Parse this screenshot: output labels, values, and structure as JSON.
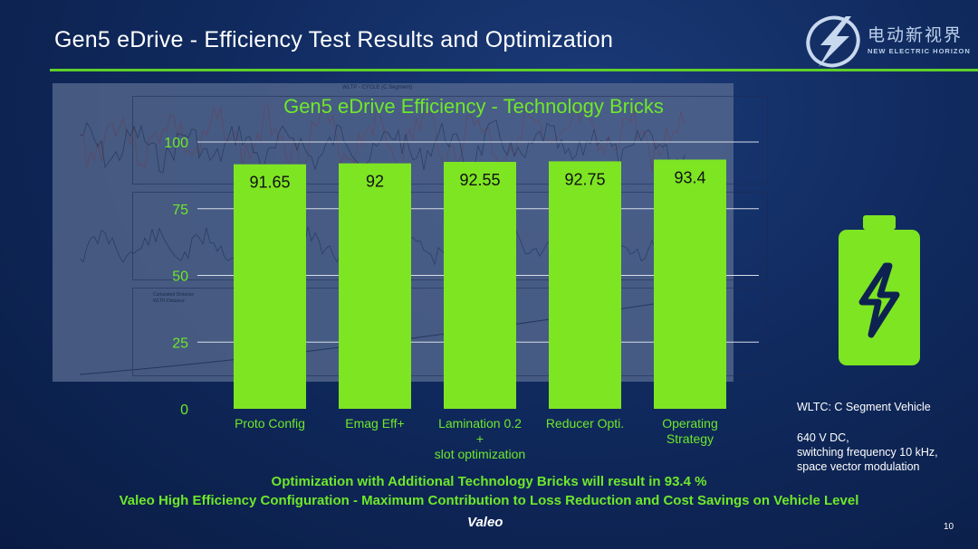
{
  "slide": {
    "title": "Gen5 eDrive - Efficiency Test Results and Optimization",
    "page_number": "10",
    "brand": "Valeo"
  },
  "logo": {
    "cn_text": "电动新视界",
    "en_text": "NEW ELECTRIC HORIZON",
    "icon": "lightning-globe-icon"
  },
  "background_figure": {
    "title": "WLTP - CYCLE (C Segment)",
    "legend": [
      "Cumulated Distance",
      "WLTP-Distance"
    ]
  },
  "chart_data": {
    "type": "bar",
    "title": "Gen5 eDrive Efficiency - Technology Bricks",
    "categories": [
      "Proto Config",
      "Emag Eff+",
      "Lamination 0.2\n+\nslot optimization",
      "Reducer Opti.",
      "Operating\nStrategy"
    ],
    "values": [
      91.65,
      92,
      92.55,
      92.75,
      93.4
    ],
    "value_labels": [
      "91.65",
      "92",
      "92.55",
      "92.75",
      "93.4"
    ],
    "yticks": [
      0,
      25,
      50,
      75,
      100
    ],
    "ylim": [
      0,
      100
    ],
    "grid": true,
    "bar_color": "#7ee523"
  },
  "notes": {
    "vehicle": "WLTC: C Segment Vehicle",
    "voltage": "640 V DC,",
    "switching": "switching frequency 10 kHz,",
    "modulation": "space vector modulation"
  },
  "footer": {
    "line1": "Optimization with Additional Technology Bricks will result in 93.4 %",
    "line2": "Valeo High Efficiency Configuration - Maximum Contribution to Loss Reduction and Cost Savings on Vehicle Level"
  },
  "battery_icon": "battery-charging-icon"
}
